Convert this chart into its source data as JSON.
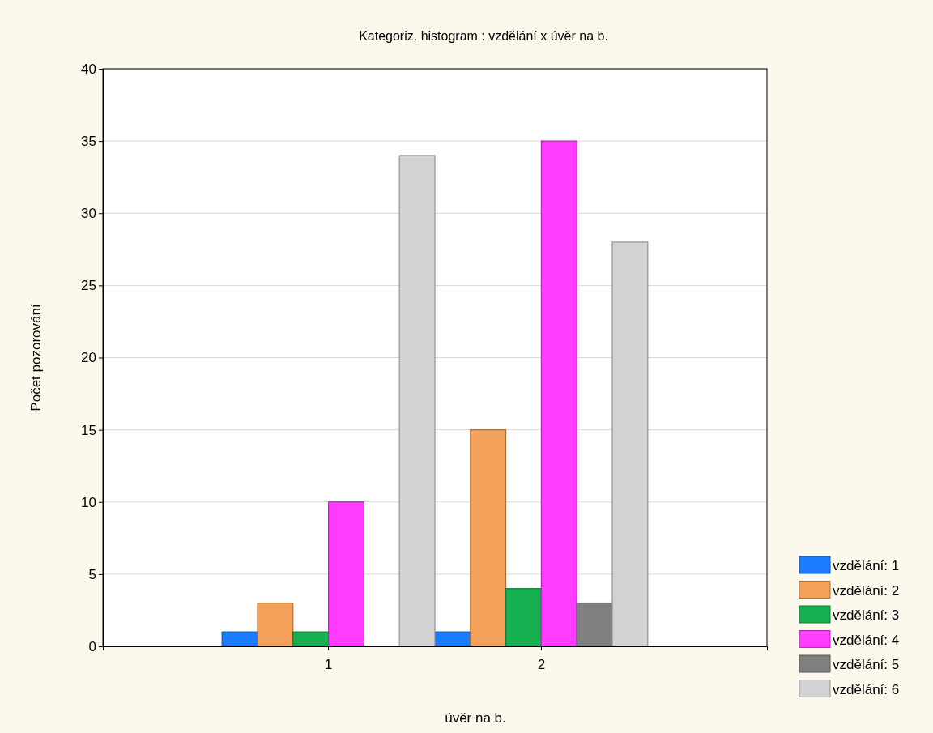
{
  "chart_data": {
    "type": "bar",
    "title": "Kategoriz. histogram : vzdělání x úvěr na b.",
    "xlabel": "úvěr na b.",
    "ylabel": "Počet pozorování",
    "categories": [
      "1",
      "2"
    ],
    "series": [
      {
        "name": "vzdělání: 1",
        "color": "#1a7cff",
        "values": [
          1,
          1
        ]
      },
      {
        "name": "vzdělání: 2",
        "color": "#f2a05a",
        "values": [
          3,
          15
        ]
      },
      {
        "name": "vzdělání: 3",
        "color": "#16b050",
        "values": [
          1,
          4
        ]
      },
      {
        "name": "vzdělání: 4",
        "color": "#ff3cff",
        "values": [
          10,
          35
        ]
      },
      {
        "name": "vzdělání: 5",
        "color": "#7f7f7f",
        "values": [
          0,
          3
        ]
      },
      {
        "name": "vzdělání: 6",
        "color": "#d2d2d2",
        "values": [
          34,
          28
        ]
      }
    ],
    "ylim": [
      0,
      40
    ],
    "yticks": [
      0,
      5,
      10,
      15,
      20,
      25,
      30,
      35,
      40
    ],
    "grid": "y",
    "legend": "bottom right"
  }
}
